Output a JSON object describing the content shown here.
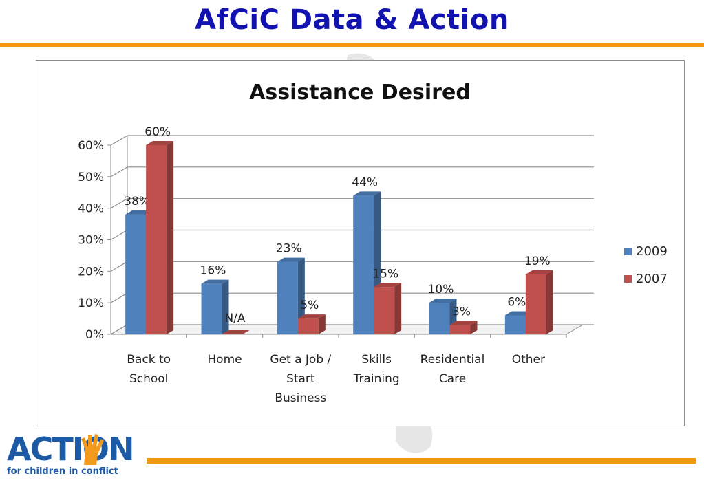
{
  "slide": {
    "title": "AfCiC Data & Action"
  },
  "logo": {
    "word": "ACTION",
    "tagline": "for children in conflict"
  },
  "colors": {
    "title": "#1212b0",
    "accent_rule": "#f0980f",
    "series_2009": "#4f81bd",
    "series_2007": "#c0504d"
  },
  "chart_data": {
    "type": "bar",
    "style": "3d-clustered-column",
    "title": "Assistance Desired",
    "categories": [
      [
        "Back to",
        "School"
      ],
      [
        "Home"
      ],
      [
        "Get a Job /",
        "Start",
        "Business"
      ],
      [
        "Skills",
        "Training"
      ],
      [
        "Residential",
        "Care"
      ],
      [
        "Other"
      ]
    ],
    "series": [
      {
        "name": "2009",
        "values": [
          38,
          16,
          23,
          44,
          10,
          6
        ],
        "labels": [
          "38%",
          "16%",
          "23%",
          "44%",
          "10%",
          "6%"
        ]
      },
      {
        "name": "2007",
        "values": [
          60,
          0,
          5,
          15,
          3,
          19
        ],
        "labels": [
          "60%",
          "N/A",
          "5%",
          "15%",
          "3%",
          "19%"
        ]
      }
    ],
    "y_ticks": [
      "0%",
      "10%",
      "20%",
      "30%",
      "40%",
      "50%",
      "60%"
    ],
    "ylim": [
      0,
      60
    ],
    "grid": true,
    "legend": "right"
  }
}
